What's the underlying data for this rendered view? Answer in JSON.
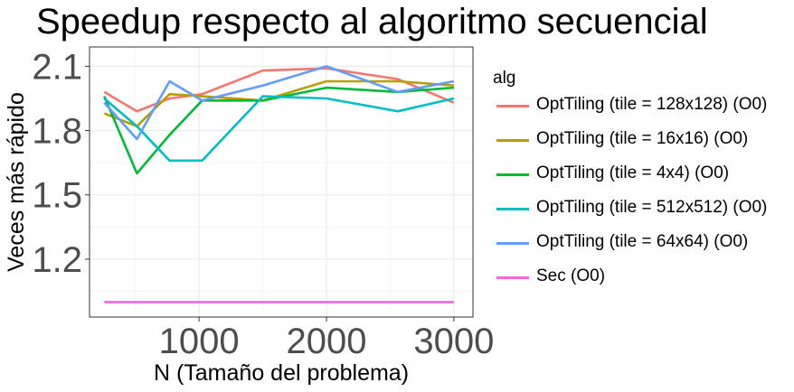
{
  "chart_data": {
    "type": "line",
    "title": "Speedup respecto al algoritmo secuencial",
    "xlabel": "N (Tamaño del problema)",
    "ylabel": "Veces más rápido",
    "xlim": [
      140,
      3150
    ],
    "ylim": [
      0.93,
      2.19
    ],
    "xticks": [
      1000,
      2000,
      3000
    ],
    "xtick_labels": [
      "1000",
      "2000",
      "3000"
    ],
    "yticks": [
      1.2,
      1.5,
      1.8,
      2.1
    ],
    "ytick_labels": [
      "1.2",
      "1.5",
      "1.8",
      "2.1"
    ],
    "grid": true,
    "legend_title": "alg",
    "legend_position": "right",
    "series": [
      {
        "name": "OptTiling (tile = 128x128) (O0)",
        "color": "#F8766D",
        "x": [
          256,
          512,
          768,
          1024,
          1500,
          2000,
          2560,
          3000
        ],
        "y": [
          1.98,
          1.89,
          1.95,
          1.97,
          2.08,
          2.09,
          2.04,
          1.93
        ]
      },
      {
        "name": "OptTiling (tile = 16x16) (O0)",
        "color": "#B79F00",
        "x": [
          256,
          512,
          768,
          1024,
          1500,
          2000,
          2560,
          3000
        ],
        "y": [
          1.88,
          1.82,
          1.97,
          1.96,
          1.94,
          2.03,
          2.03,
          2.01
        ]
      },
      {
        "name": "OptTiling (tile = 4x4) (O0)",
        "color": "#00BA38",
        "x": [
          256,
          512,
          768,
          1024,
          1500,
          2000,
          2560,
          3000
        ],
        "y": [
          1.96,
          1.6,
          1.78,
          1.94,
          1.94,
          2.0,
          1.98,
          2.0
        ]
      },
      {
        "name": "OptTiling (tile = 512x512) (O0)",
        "color": "#00BFC4",
        "x": [
          256,
          512,
          768,
          1024,
          1500,
          2000,
          2560,
          3000
        ],
        "y": [
          1.95,
          1.82,
          1.66,
          1.66,
          1.96,
          1.95,
          1.89,
          1.95
        ]
      },
      {
        "name": "OptTiling (tile = 64x64) (O0)",
        "color": "#619CFF",
        "x": [
          256,
          512,
          768,
          1024,
          1500,
          2000,
          2560,
          3000
        ],
        "y": [
          1.93,
          1.76,
          2.03,
          1.94,
          2.01,
          2.1,
          1.98,
          2.03
        ]
      },
      {
        "name": "Sec (O0)",
        "color": "#F564E3",
        "x": [
          256,
          512,
          768,
          1024,
          1500,
          2000,
          2560,
          3000
        ],
        "y": [
          1.0,
          1.0,
          1.0,
          1.0,
          1.0,
          1.0,
          1.0,
          1.0
        ]
      }
    ]
  }
}
